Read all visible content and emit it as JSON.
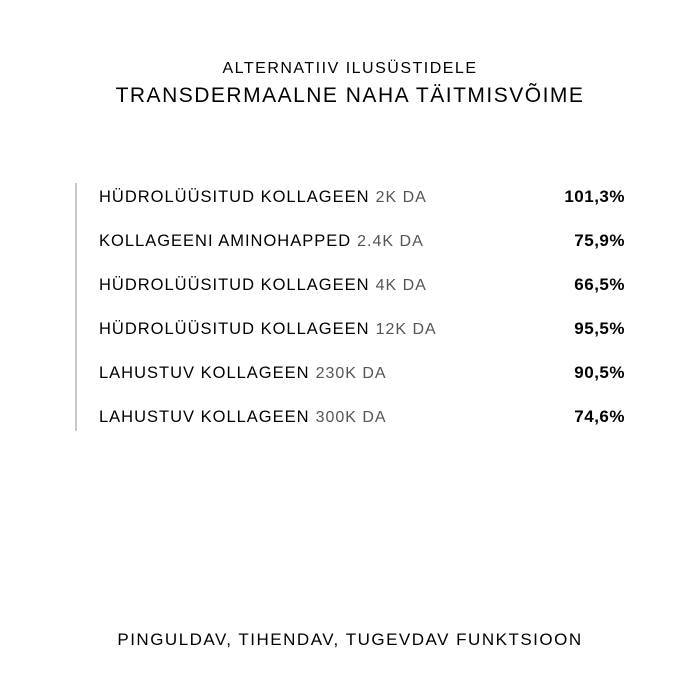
{
  "header": {
    "subtitle": "ALTERNATIIV ILUSÜSTIDELE",
    "title": "TRANSDERMAALNE NAHA TÄITMISVÕIME"
  },
  "table": {
    "rows": [
      {
        "ingredient": "HÜDROLÜÜSITUD KOLLAGEEN",
        "weight": "2K DA",
        "percent": "101,3%"
      },
      {
        "ingredient": "KOLLAGEENI AMINOHAPPED",
        "weight": "2.4K DA",
        "percent": "75,9%"
      },
      {
        "ingredient": "HÜDROLÜÜSITUD KOLLAGEEN",
        "weight": "4K DA",
        "percent": "66,5%"
      },
      {
        "ingredient": "HÜDROLÜÜSITUD KOLLAGEEN",
        "weight": "12K DA",
        "percent": "95,5%"
      },
      {
        "ingredient": "LAHUSTUV KOLLAGEEN",
        "weight": "230K DA",
        "percent": "90,5%"
      },
      {
        "ingredient": "LAHUSTUV KOLLAGEEN",
        "weight": "300K DA",
        "percent": "74,6%"
      }
    ]
  },
  "footer": "PINGULDAV, TIHENDAV, TUGEVDAV FUNKTSIOON",
  "styling": {
    "background_color": "#ffffff",
    "text_color": "#000000",
    "border_color": "#c8c8c8",
    "weight_color": "#555555",
    "subtitle_fontsize": 16,
    "title_fontsize": 21,
    "ingredient_fontsize": 16.5,
    "weight_fontsize": 16,
    "percent_fontsize": 17,
    "footer_fontsize": 17
  }
}
